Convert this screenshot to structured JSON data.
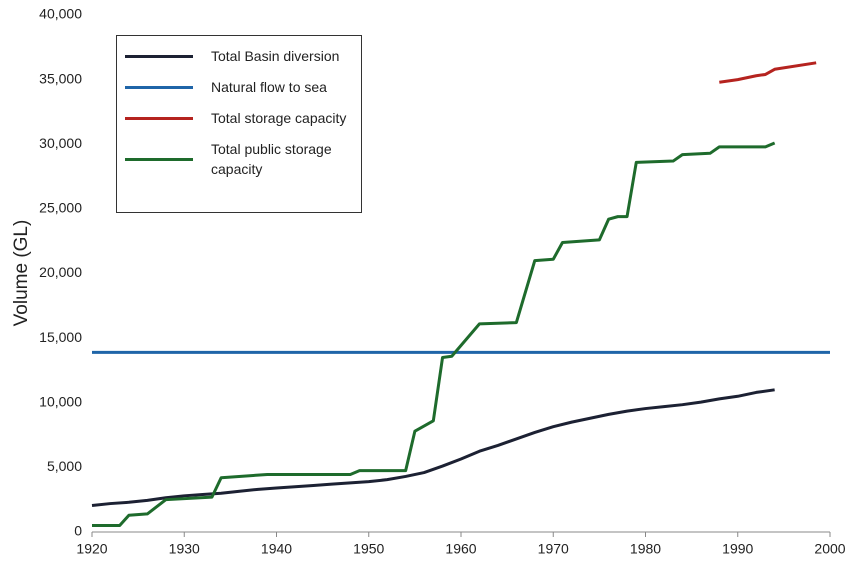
{
  "chart_data": {
    "type": "line",
    "ylabel": "Volume (GL)",
    "xlim": [
      1920,
      2000
    ],
    "xticks": [
      1920,
      1930,
      1940,
      1950,
      1960,
      1970,
      1980,
      1990,
      2000
    ],
    "ylim": [
      0,
      40000
    ],
    "yticks": [
      0,
      {
        "value": 5000,
        "label": "5,000"
      },
      {
        "value": 10000,
        "label": "10,000"
      },
      {
        "value": 15000,
        "label": "15,000"
      },
      {
        "value": 20000,
        "label": "20,000"
      },
      {
        "value": 25000,
        "label": "25,000"
      },
      {
        "value": 30000,
        "label": "30,000"
      },
      {
        "value": 35000,
        "label": "35,000"
      },
      {
        "value": 40000,
        "label": "40,000"
      }
    ],
    "grid": false,
    "legend": "upper left",
    "series": [
      {
        "name": "Total Basin diversion",
        "color": "#1c2133",
        "x": [
          1920,
          1922,
          1924,
          1926,
          1928,
          1930,
          1932,
          1934,
          1936,
          1938,
          1940,
          1942,
          1944,
          1946,
          1948,
          1950,
          1952,
          1954,
          1956,
          1958,
          1960,
          1962,
          1964,
          1966,
          1968,
          1970,
          1972,
          1974,
          1976,
          1978,
          1980,
          1982,
          1984,
          1986,
          1988,
          1990,
          1992,
          1994
        ],
        "values": [
          2050,
          2200,
          2300,
          2450,
          2650,
          2800,
          2900,
          3000,
          3150,
          3300,
          3400,
          3500,
          3600,
          3700,
          3800,
          3900,
          4050,
          4300,
          4600,
          5100,
          5650,
          6250,
          6700,
          7200,
          7700,
          8150,
          8500,
          8800,
          9100,
          9350,
          9550,
          9700,
          9850,
          10050,
          10300,
          10500,
          10800,
          11000
        ]
      },
      {
        "name": "Natural flow to sea",
        "color": "#1f65a8",
        "x": [
          1920,
          2000
        ],
        "values": [
          13900,
          13900
        ]
      },
      {
        "name": "Total storage capacity",
        "color": "#b5231f",
        "x": [
          1988,
          1990,
          1992,
          1993,
          1994,
          1998.5
        ],
        "values": [
          34800,
          35000,
          35300,
          35400,
          35800,
          36300
        ]
      },
      {
        "name": "Total public storage capacity",
        "color": "#1e6b2c",
        "x": [
          1920,
          1923,
          1924,
          1926,
          1928,
          1933,
          1934,
          1939,
          1948,
          1949,
          1954,
          1955,
          1957,
          1958,
          1959,
          1962,
          1966,
          1968,
          1970,
          1971,
          1975,
          1976,
          1977,
          1978,
          1979,
          1983,
          1984,
          1987,
          1988,
          1993,
          1994
        ],
        "values": [
          500,
          500,
          1300,
          1400,
          2500,
          2700,
          4200,
          4450,
          4450,
          4750,
          4750,
          7800,
          8600,
          13500,
          13600,
          16100,
          16200,
          21000,
          21100,
          22400,
          22600,
          24200,
          24400,
          24400,
          28600,
          28700,
          29200,
          29300,
          29800,
          29800,
          30100
        ]
      }
    ]
  }
}
